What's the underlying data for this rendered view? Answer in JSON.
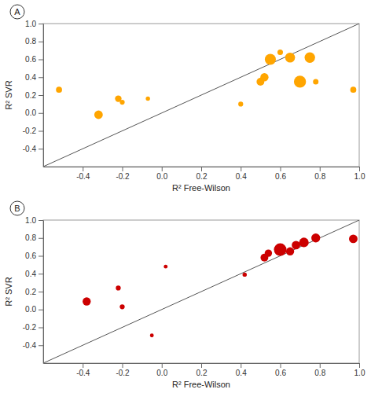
{
  "chart_data": [
    {
      "type": "scatter",
      "title": "A",
      "xlabel": "R² Free-Wilson",
      "ylabel": "R² SVR",
      "color": "#FFA500",
      "x": [
        -0.52,
        -0.32,
        -0.22,
        -0.2,
        -0.07,
        0.4,
        0.5,
        0.52,
        0.55,
        0.6,
        0.65,
        0.7,
        0.75,
        0.78,
        0.97
      ],
      "values": [
        0.26,
        -0.02,
        0.16,
        0.12,
        0.16,
        0.1,
        0.35,
        0.4,
        0.6,
        0.68,
        0.62,
        0.35,
        0.62,
        0.35,
        0.26
      ],
      "sizes": [
        30,
        60,
        35,
        20,
        15,
        20,
        50,
        55,
        100,
        25,
        80,
        120,
        90,
        25,
        30
      ],
      "xlim": [
        -0.6,
        1.0
      ],
      "ylim": [
        -0.6,
        1.0
      ],
      "xticks": [
        -0.4,
        -0.2,
        {
          "value": 0.0,
          "label": "0.0"
        },
        0.2,
        0.4,
        0.6,
        0.8,
        {
          "value": 1.0,
          "label": "1.0"
        }
      ],
      "yticks": [
        -0.4,
        -0.2,
        {
          "value": 0.0,
          "label": "0.0"
        },
        0.2,
        0.4,
        0.6,
        0.8,
        {
          "value": 1.0,
          "label": "1.0"
        }
      ],
      "grid": false
    },
    {
      "type": "scatter",
      "title": "B",
      "xlabel": "R² Free-Wilson",
      "ylabel": "R² SVR",
      "color": "#CC0000",
      "x": [
        -0.38,
        -0.22,
        -0.2,
        -0.05,
        0.02,
        0.42,
        0.52,
        0.54,
        0.6,
        0.65,
        0.68,
        0.72,
        0.78,
        0.97
      ],
      "values": [
        0.09,
        0.24,
        0.03,
        -0.29,
        0.48,
        0.39,
        0.58,
        0.63,
        0.67,
        0.65,
        0.72,
        0.75,
        0.8,
        0.79
      ],
      "sizes": [
        55,
        20,
        20,
        12,
        12,
        15,
        50,
        45,
        130,
        55,
        60,
        75,
        65,
        60
      ],
      "xlim": [
        -0.6,
        1.0
      ],
      "ylim": [
        -0.6,
        1.0
      ],
      "xticks": [
        -0.4,
        -0.2,
        {
          "value": 0.0,
          "label": "0.0"
        },
        0.2,
        0.4,
        0.6,
        0.8,
        {
          "value": 1.0,
          "label": "1.0"
        }
      ],
      "yticks": [
        -0.4,
        -0.2,
        {
          "value": 0.0,
          "label": "0.0"
        },
        0.2,
        0.4,
        0.6,
        0.8,
        {
          "value": 1.0,
          "label": "1.0"
        }
      ],
      "grid": false
    }
  ]
}
